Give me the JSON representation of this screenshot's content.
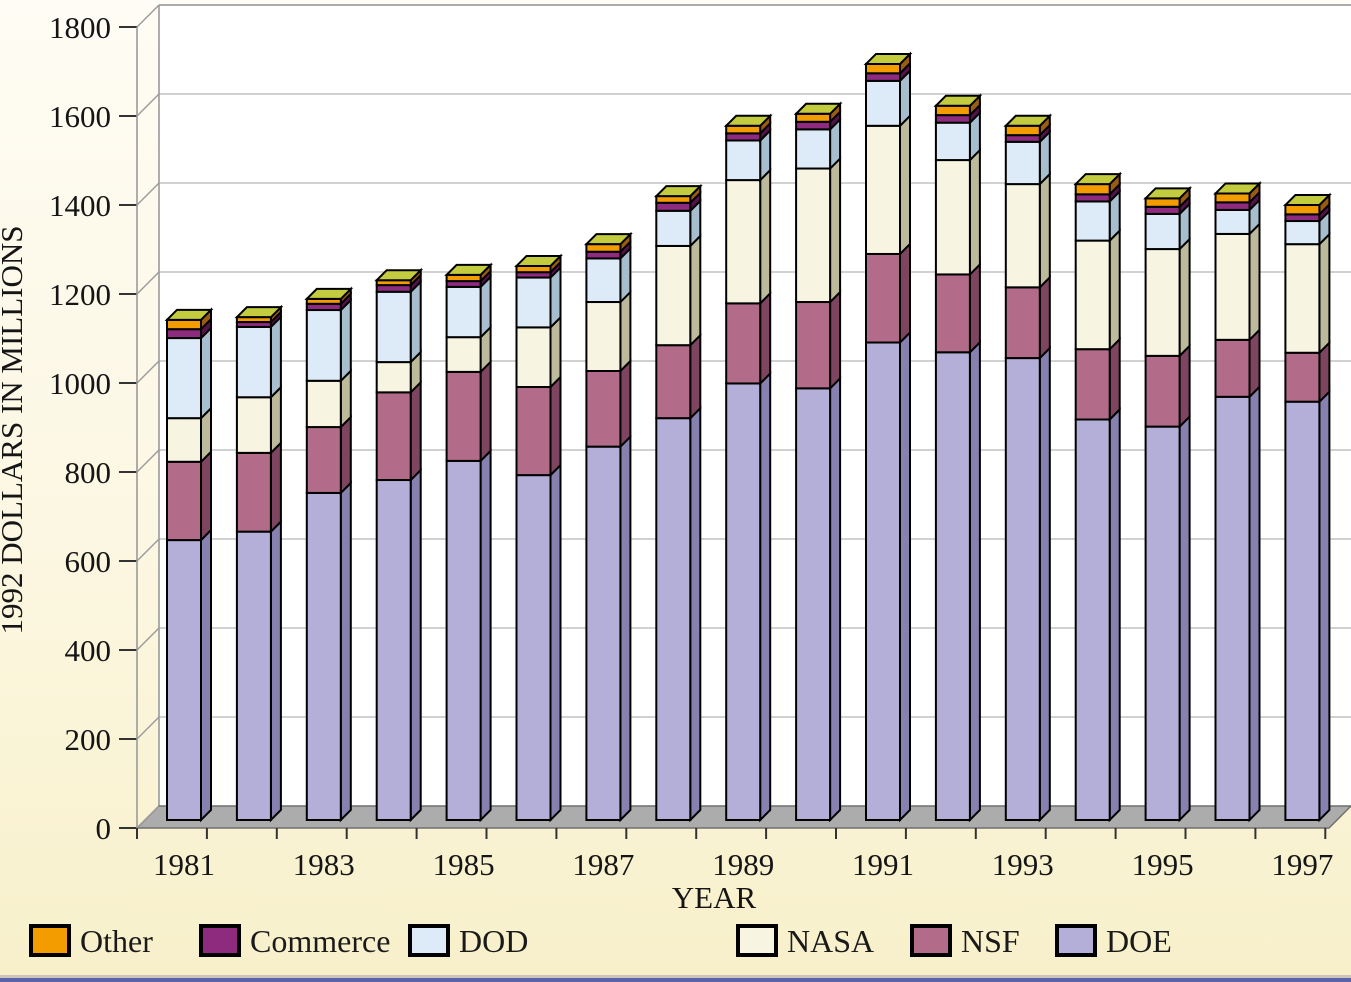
{
  "axes": {
    "ylabel": "1992 DOLLARS IN MILLIONS",
    "xlabel": "YEAR"
  },
  "chart_data": {
    "type": "bar",
    "stacked": true,
    "style": "3d-stacked-columns",
    "title": "",
    "xlabel": "YEAR",
    "ylabel": "1992 DOLLARS IN MILLIONS",
    "ylim": [
      0,
      1800
    ],
    "ytick_labels": [
      "0",
      "200",
      "400",
      "600",
      "800",
      "1000",
      "1200",
      "1400",
      "1600",
      "1800"
    ],
    "categories": [
      "1981",
      "1982",
      "1983",
      "1984",
      "1985",
      "1986",
      "1987",
      "1988",
      "1989",
      "1990",
      "1991",
      "1992",
      "1993",
      "1994",
      "1995",
      "1996",
      "1997"
    ],
    "xtick_labels": [
      "1981",
      "1983",
      "1985",
      "1987",
      "1989",
      "1991",
      "1993",
      "1995",
      "1997"
    ],
    "grid": true,
    "legend_position": "bottom",
    "series": [
      {
        "name": "DOE",
        "color": "#B4AFD8",
        "side_color": "#8781AF",
        "values": [
          629,
          648,
          735,
          764,
          807,
          775,
          839,
          903,
          981,
          970,
          1073,
          1051,
          1038,
          900,
          884,
          951,
          940
        ]
      },
      {
        "name": "NSF",
        "color": "#B26B88",
        "side_color": "#7E4560",
        "values": [
          176,
          177,
          148,
          197,
          200,
          198,
          170,
          164,
          180,
          194,
          199,
          175,
          159,
          158,
          159,
          128,
          110
        ]
      },
      {
        "name": "NASA",
        "color": "#F7F5E1",
        "side_color": "#BDBA9B",
        "values": [
          98,
          125,
          104,
          68,
          78,
          134,
          155,
          223,
          277,
          300,
          288,
          257,
          232,
          244,
          240,
          238,
          244
        ]
      },
      {
        "name": "DOD",
        "color": "#DCEBF7",
        "side_color": "#A7BECF",
        "values": [
          180,
          158,
          159,
          158,
          113,
          112,
          98,
          79,
          89,
          88,
          101,
          84,
          95,
          88,
          79,
          54,
          52
        ]
      },
      {
        "name": "Commerce",
        "color": "#8E2B7E",
        "side_color": "#54124B",
        "values": [
          20,
          11,
          14,
          15,
          13,
          12,
          15,
          18,
          16,
          17,
          17,
          17,
          15,
          16,
          16,
          17,
          15
        ]
      },
      {
        "name": "Other",
        "color": "#F39C00",
        "side_color": "#9A5B12",
        "values": [
          21,
          11,
          11,
          11,
          14,
          14,
          17,
          15,
          17,
          18,
          21,
          21,
          21,
          23,
          19,
          20,
          21
        ]
      }
    ],
    "totals": [
      1124,
      1130,
      1171,
      1213,
      1225,
      1245,
      1294,
      1402,
      1560,
      1587,
      1699,
      1605,
      1560,
      1429,
      1397,
      1408,
      1382
    ],
    "bar_top_color": "#C3CC3E"
  },
  "legend": {
    "items": [
      {
        "label": "Other",
        "color": "#F39C00"
      },
      {
        "label": "Commerce",
        "color": "#8E2B7E"
      },
      {
        "label": "DOD",
        "color": "#DCEBF7"
      },
      {
        "label": "NASA",
        "color": "#F7F5E1"
      },
      {
        "label": "NSF",
        "color": "#B26B88"
      },
      {
        "label": "DOE",
        "color": "#B4AFD8"
      }
    ]
  },
  "colors": {
    "background_top": "#FEFCF4",
    "background_bottom": "#F8F0CA",
    "plot_wall": "#FFFFFF",
    "grid": "#C2C2C2",
    "floor": "#ACACAC",
    "axis": "#9A9A9A",
    "tick": "#333333",
    "text": "#151515",
    "segment_outline": "#000000",
    "bottom_strip": "#5A62A8"
  }
}
